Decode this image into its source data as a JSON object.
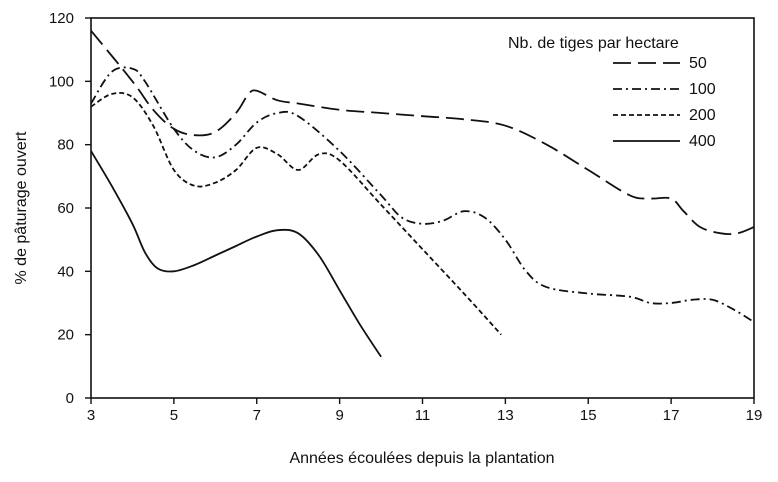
{
  "chart_data": {
    "type": "line",
    "title": "",
    "xlabel": "Années écoulées depuis la plantation",
    "ylabel": "% de pâturage ouvert",
    "xlim": [
      3,
      19
    ],
    "ylim": [
      0,
      120
    ],
    "x_ticks": [
      3,
      5,
      7,
      9,
      11,
      13,
      15,
      17,
      19
    ],
    "y_ticks": [
      0,
      20,
      40,
      60,
      80,
      100,
      120
    ],
    "legend_title": "Nb. de tiges par hectare",
    "legend_position": "top-right",
    "grid": false,
    "series": [
      {
        "name": "50",
        "style": "dashed",
        "x": [
          3,
          4,
          4.5,
          5,
          5.5,
          6,
          6.5,
          6.8,
          7,
          7.5,
          8,
          9,
          10,
          11,
          12,
          13,
          14,
          15,
          16,
          16.5,
          17,
          17.3,
          17.7,
          18.2,
          18.6,
          19
        ],
        "y": [
          116,
          100,
          91,
          85,
          83,
          84,
          90,
          96,
          97,
          94,
          93,
          91,
          90,
          89,
          88,
          86,
          80,
          72,
          64,
          63,
          63,
          59,
          54,
          52,
          52,
          54
        ]
      },
      {
        "name": "100",
        "style": "dash-dot",
        "x": [
          3,
          3.5,
          4,
          4.3,
          5,
          5.5,
          6,
          6.5,
          7,
          7.5,
          8,
          9,
          10,
          10.5,
          11,
          11.5,
          12,
          12.5,
          13,
          13.5,
          14,
          15,
          16,
          16.5,
          17,
          17.5,
          18,
          18.5,
          19
        ],
        "y": [
          93,
          103,
          104,
          100,
          85,
          78,
          76,
          80,
          87,
          90,
          89,
          78,
          64,
          57,
          55,
          56,
          59,
          57,
          50,
          40,
          35,
          33,
          32,
          30,
          30,
          31,
          31,
          28,
          24
        ]
      },
      {
        "name": "200",
        "style": "dotted-dashed",
        "x": [
          3,
          3.5,
          4,
          4.5,
          5,
          5.5,
          6,
          6.5,
          7,
          7.5,
          8,
          8.5,
          9,
          10,
          11,
          12,
          12.9
        ],
        "y": [
          92,
          96,
          95,
          86,
          72,
          67,
          68,
          72,
          79,
          77,
          72,
          77,
          75,
          61,
          47,
          33,
          20
        ]
      },
      {
        "name": "400",
        "style": "solid",
        "x": [
          3,
          3.5,
          4,
          4.3,
          4.6,
          5,
          5.5,
          6,
          6.5,
          7,
          7.5,
          8,
          8.5,
          9,
          9.5,
          10
        ],
        "y": [
          78,
          67,
          55,
          46,
          41,
          40,
          42,
          45,
          48,
          51,
          53,
          52,
          45,
          34,
          23,
          13
        ]
      }
    ]
  }
}
